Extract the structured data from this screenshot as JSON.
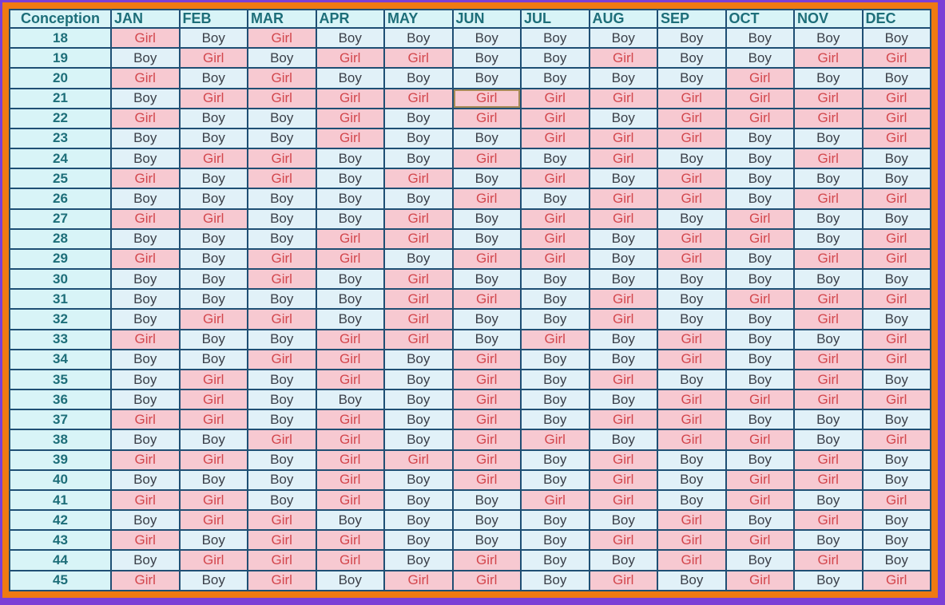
{
  "header": {
    "first": "Conception",
    "months": [
      "JAN",
      "FEB",
      "MAR",
      "APR",
      "MAY",
      "JUN",
      "JUL",
      "AUG",
      "SEP",
      "OCT",
      "NOV",
      "DEC"
    ]
  },
  "colors": {
    "boy_bg": "#e1f1f8",
    "girl_bg": "#f7c9d1",
    "girl_text": "#d3474d",
    "age_text": "#1d6e79",
    "frame_orange": "#f07a12",
    "frame_purple": "#7b3fd6"
  },
  "rows": [
    {
      "age": "18",
      "cells": [
        "Girl",
        "Boy",
        "Girl",
        "Boy",
        "Boy",
        "Boy",
        "Boy",
        "Boy",
        "Boy",
        "Boy",
        "Boy",
        "Boy"
      ]
    },
    {
      "age": "19",
      "cells": [
        "Boy",
        "Girl",
        "Boy",
        "Girl",
        "Girl",
        "Boy",
        "Boy",
        "Girl",
        "Boy",
        "Boy",
        "Girl",
        "Girl"
      ]
    },
    {
      "age": "20",
      "cells": [
        "Girl",
        "Boy",
        "Girl",
        "Boy",
        "Boy",
        "Boy",
        "Boy",
        "Boy",
        "Boy",
        "Girl",
        "Boy",
        "Boy"
      ]
    },
    {
      "age": "21",
      "cells": [
        "Boy",
        "Girl",
        "Girl",
        "Girl",
        "Girl",
        "Girl",
        "Girl",
        "Girl",
        "Girl",
        "Girl",
        "Girl",
        "Girl"
      ]
    },
    {
      "age": "22",
      "cells": [
        "Girl",
        "Boy",
        "Boy",
        "Girl",
        "Boy",
        "Girl",
        "Girl",
        "Boy",
        "Girl",
        "Girl",
        "Girl",
        "Girl"
      ]
    },
    {
      "age": "23",
      "cells": [
        "Boy",
        "Boy",
        "Boy",
        "Girl",
        "Boy",
        "Boy",
        "Girl",
        "Girl",
        "Girl",
        "Boy",
        "Boy",
        "Girl"
      ]
    },
    {
      "age": "24",
      "cells": [
        "Boy",
        "Girl",
        "Girl",
        "Boy",
        "Boy",
        "Girl",
        "Boy",
        "Girl",
        "Boy",
        "Boy",
        "Girl",
        "Boy"
      ]
    },
    {
      "age": "25",
      "cells": [
        "Girl",
        "Boy",
        "Girl",
        "Boy",
        "Girl",
        "Boy",
        "Girl",
        "Boy",
        "Girl",
        "Boy",
        "Boy",
        "Boy"
      ]
    },
    {
      "age": "26",
      "cells": [
        "Boy",
        "Boy",
        "Boy",
        "Boy",
        "Boy",
        "Girl",
        "Boy",
        "Girl",
        "Girl",
        "Boy",
        "Girl",
        "Girl"
      ]
    },
    {
      "age": "27",
      "cells": [
        "Girl",
        "Girl",
        "Boy",
        "Boy",
        "Girl",
        "Boy",
        "Girl",
        "Girl",
        "Boy",
        "Girl",
        "Boy",
        "Boy"
      ]
    },
    {
      "age": "28",
      "cells": [
        "Boy",
        "Boy",
        "Boy",
        "Girl",
        "Girl",
        "Boy",
        "Girl",
        "Boy",
        "Girl",
        "Girl",
        "Boy",
        "Girl"
      ]
    },
    {
      "age": "29",
      "cells": [
        "Girl",
        "Boy",
        "Girl",
        "Girl",
        "Boy",
        "Girl",
        "Girl",
        "Boy",
        "Girl",
        "Boy",
        "Girl",
        "Girl"
      ]
    },
    {
      "age": "30",
      "cells": [
        "Boy",
        "Boy",
        "Girl",
        "Boy",
        "Girl",
        "Boy",
        "Boy",
        "Boy",
        "Boy",
        "Boy",
        "Boy",
        "Boy"
      ]
    },
    {
      "age": "31",
      "cells": [
        "Boy",
        "Boy",
        "Boy",
        "Boy",
        "Girl",
        "Girl",
        "Boy",
        "Girl",
        "Boy",
        "Girl",
        "Girl",
        "Girl"
      ]
    },
    {
      "age": "32",
      "cells": [
        "Boy",
        "Girl",
        "Girl",
        "Boy",
        "Girl",
        "Boy",
        "Boy",
        "Girl",
        "Boy",
        "Boy",
        "Girl",
        "Boy"
      ]
    },
    {
      "age": "33",
      "cells": [
        "Girl",
        "Boy",
        "Boy",
        "Girl",
        "Girl",
        "Boy",
        "Girl",
        "Boy",
        "Girl",
        "Boy",
        "Boy",
        "Girl"
      ]
    },
    {
      "age": "34",
      "cells": [
        "Boy",
        "Boy",
        "Girl",
        "Girl",
        "Boy",
        "Girl",
        "Boy",
        "Boy",
        "Girl",
        "Boy",
        "Girl",
        "Girl"
      ]
    },
    {
      "age": "35",
      "cells": [
        "Boy",
        "Girl",
        "Boy",
        "Girl",
        "Boy",
        "Girl",
        "Boy",
        "Girl",
        "Boy",
        "Boy",
        "Girl",
        "Boy"
      ]
    },
    {
      "age": "36",
      "cells": [
        "Boy",
        "Girl",
        "Boy",
        "Boy",
        "Boy",
        "Girl",
        "Boy",
        "Boy",
        "Girl",
        "Girl",
        "Girl",
        "Girl"
      ]
    },
    {
      "age": "37",
      "cells": [
        "Girl",
        "Girl",
        "Boy",
        "Girl",
        "Boy",
        "Girl",
        "Boy",
        "Girl",
        "Girl",
        "Boy",
        "Boy",
        "Boy"
      ]
    },
    {
      "age": "38",
      "cells": [
        "Boy",
        "Boy",
        "Girl",
        "Girl",
        "Boy",
        "Girl",
        "Girl",
        "Boy",
        "Girl",
        "Girl",
        "Boy",
        "Girl"
      ]
    },
    {
      "age": "39",
      "cells": [
        "Girl",
        "Girl",
        "Boy",
        "Girl",
        "Girl",
        "Girl",
        "Boy",
        "Girl",
        "Boy",
        "Boy",
        "Girl",
        "Boy"
      ]
    },
    {
      "age": "40",
      "cells": [
        "Boy",
        "Boy",
        "Boy",
        "Girl",
        "Boy",
        "Girl",
        "Boy",
        "Girl",
        "Boy",
        "Girl",
        "Girl",
        "Boy"
      ]
    },
    {
      "age": "41",
      "cells": [
        "Girl",
        "Girl",
        "Boy",
        "Girl",
        "Boy",
        "Boy",
        "Girl",
        "Girl",
        "Boy",
        "Girl",
        "Boy",
        "Girl"
      ]
    },
    {
      "age": "42",
      "cells": [
        "Boy",
        "Girl",
        "Girl",
        "Boy",
        "Boy",
        "Boy",
        "Boy",
        "Boy",
        "Girl",
        "Boy",
        "Girl",
        "Boy"
      ]
    },
    {
      "age": "43",
      "cells": [
        "Girl",
        "Boy",
        "Girl",
        "Girl",
        "Boy",
        "Boy",
        "Boy",
        "Girl",
        "Girl",
        "Girl",
        "Boy",
        "Boy"
      ]
    },
    {
      "age": "44",
      "cells": [
        "Boy",
        "Girl",
        "Girl",
        "Girl",
        "Boy",
        "Girl",
        "Boy",
        "Boy",
        "Girl",
        "Boy",
        "Girl",
        "Boy"
      ]
    },
    {
      "age": "45",
      "cells": [
        "Girl",
        "Boy",
        "Girl",
        "Boy",
        "Girl",
        "Girl",
        "Boy",
        "Girl",
        "Boy",
        "Girl",
        "Boy",
        "Girl"
      ]
    }
  ]
}
